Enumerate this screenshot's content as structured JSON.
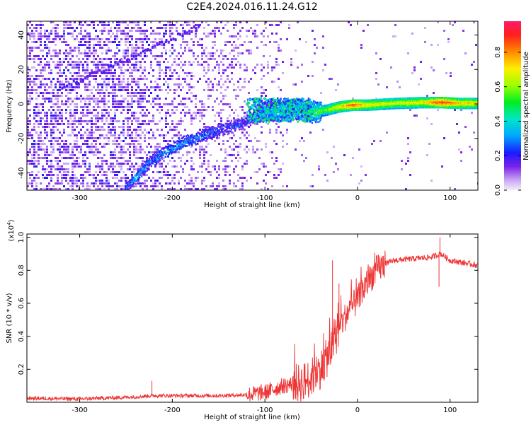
{
  "title": "C2E4.2024.016.11.24.G12",
  "chart_data": [
    {
      "type": "heatmap",
      "xlabel": "Height of straight line (km)",
      "ylabel": "Frequency (Hz)",
      "xlim": [
        -357,
        130
      ],
      "ylim": [
        -50,
        48
      ],
      "xticks": [
        -300,
        -200,
        -100,
        0,
        100
      ],
      "yticks": [
        -40,
        -20,
        0,
        20,
        40
      ],
      "colorbar": {
        "label": "Normalized spectral amplitude",
        "range": [
          0,
          0.98
        ],
        "ticks": [
          0.0,
          0.2,
          0.4,
          0.6,
          0.8
        ]
      },
      "ridge": [
        {
          "x": -252,
          "y": -49,
          "amp": 0.3
        },
        {
          "x": -240,
          "y": -42,
          "amp": 0.35
        },
        {
          "x": -225,
          "y": -33,
          "amp": 0.3
        },
        {
          "x": -210,
          "y": -28,
          "amp": 0.33
        },
        {
          "x": -190,
          "y": -22,
          "amp": 0.35
        },
        {
          "x": -165,
          "y": -17,
          "amp": 0.3
        },
        {
          "x": -140,
          "y": -13,
          "amp": 0.25
        },
        {
          "x": -120,
          "y": -10,
          "amp": 0.25
        },
        {
          "x": -105,
          "y": -4,
          "amp": 0.3
        },
        {
          "x": -85,
          "y": -3,
          "amp": 0.45
        },
        {
          "x": -70,
          "y": -2,
          "amp": 0.5
        },
        {
          "x": -50,
          "y": -4,
          "amp": 0.55
        },
        {
          "x": -35,
          "y": -3,
          "amp": 0.6
        },
        {
          "x": -20,
          "y": -1,
          "amp": 0.75
        },
        {
          "x": -5,
          "y": 0,
          "amp": 0.9
        },
        {
          "x": 10,
          "y": 0,
          "amp": 0.75
        },
        {
          "x": 40,
          "y": 1,
          "amp": 0.7
        },
        {
          "x": 70,
          "y": 1.5,
          "amp": 0.75
        },
        {
          "x": 90,
          "y": 1.5,
          "amp": 0.95
        },
        {
          "x": 110,
          "y": 1,
          "amp": 0.8
        },
        {
          "x": 130,
          "y": 1,
          "amp": 0.75
        }
      ]
    },
    {
      "type": "line",
      "xlabel": "Height of straight line (km)",
      "ylabel": "SNR (10 * v/v)",
      "yscale_label": "(x10",
      "yscale_exp": "4",
      "xlim": [
        -357,
        130
      ],
      "ylim": [
        0,
        1.02
      ],
      "xticks": [
        -300,
        -200,
        -100,
        0,
        100
      ],
      "yticks": [
        0.2,
        0.4,
        0.6,
        0.8,
        1.0
      ],
      "series": [
        {
          "color": "#ee3333",
          "x": [
            -357,
            -300,
            -250,
            -220,
            -200,
            -150,
            -120,
            -100,
            -80,
            -60,
            -50,
            -40,
            -30,
            -20,
            -10,
            0,
            10,
            20,
            30,
            40,
            60,
            80,
            90,
            100,
            110,
            120,
            130
          ],
          "y": [
            0.025,
            0.02,
            0.03,
            0.04,
            0.04,
            0.04,
            0.045,
            0.06,
            0.1,
            0.12,
            0.15,
            0.2,
            0.3,
            0.45,
            0.55,
            0.62,
            0.72,
            0.8,
            0.84,
            0.86,
            0.87,
            0.88,
            0.9,
            0.86,
            0.85,
            0.84,
            0.83
          ]
        }
      ],
      "spikes": [
        {
          "x": -222,
          "y": 0.13
        },
        {
          "x": -27,
          "y": 0.86
        },
        {
          "x": -20,
          "y": 0.72
        },
        {
          "x": 89,
          "y": 1.0
        },
        {
          "x": 88,
          "y": 0.7
        }
      ]
    }
  ]
}
